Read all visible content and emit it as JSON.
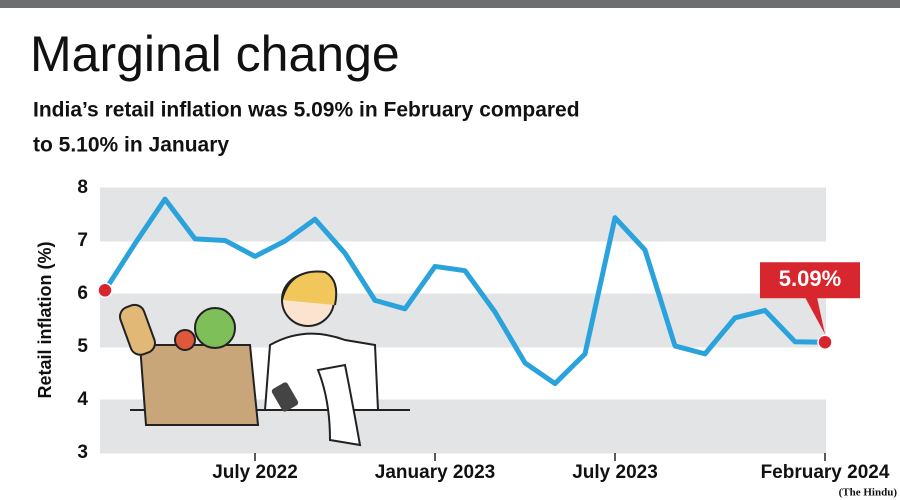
{
  "chart_data": {
    "type": "line",
    "title": "Marginal change",
    "subtitle": [
      "India’s retail inflation was 5.09% in February compared",
      "to 5.10% in January"
    ],
    "y_label": "Retail inflation (%)",
    "categories": [
      null,
      null,
      null,
      null,
      null,
      "July 2022",
      null,
      null,
      null,
      null,
      null,
      "January 2023",
      null,
      null,
      null,
      null,
      null,
      "July 2023",
      null,
      null,
      null,
      null,
      null,
      null,
      "February 2024"
    ],
    "series": [
      {
        "name": "Retail inflation",
        "color": "#2aa3dc",
        "values": [
          6.07,
          6.95,
          7.79,
          7.04,
          7.01,
          6.71,
          7.0,
          7.41,
          6.77,
          5.88,
          5.72,
          6.52,
          6.44,
          5.66,
          4.7,
          4.31,
          4.87,
          7.44,
          6.83,
          5.02,
          4.87,
          5.55,
          5.69,
          5.1,
          5.09
        ]
      }
    ],
    "annotation": "5.09%",
    "ylim": [
      3,
      8
    ],
    "yticks": [
      3,
      4,
      5,
      6,
      7,
      8
    ],
    "grid": true,
    "source": "(The Hindu)"
  }
}
